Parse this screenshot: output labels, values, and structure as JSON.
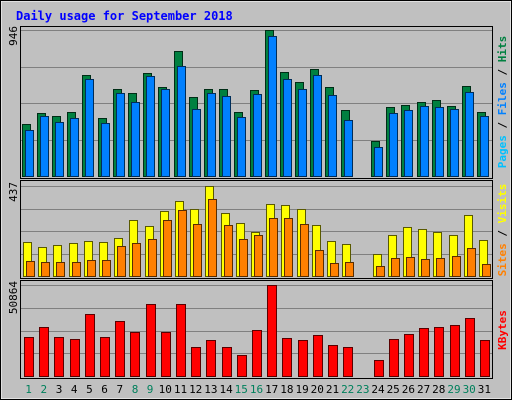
{
  "chart_data": {
    "type": "bar",
    "title": "Daily usage for September 2018",
    "categories": [
      "1",
      "2",
      "3",
      "4",
      "5",
      "6",
      "7",
      "8",
      "9",
      "10",
      "11",
      "12",
      "13",
      "14",
      "15",
      "16",
      "17",
      "18",
      "19",
      "20",
      "21",
      "22",
      "23",
      "24",
      "25",
      "26",
      "27",
      "28",
      "29",
      "30",
      "31"
    ],
    "weekend_days": [
      "1",
      "2",
      "8",
      "9",
      "15",
      "16",
      "22",
      "23",
      "29",
      "30"
    ],
    "panels": [
      {
        "name": "hits-files-pages",
        "max_label": "946",
        "ymax": 946,
        "series": [
          {
            "name": "Hits",
            "color": "#008040",
            "values": [
              336,
              408,
              386,
              414,
              654,
              376,
              566,
              538,
              670,
              574,
              810,
              510,
              566,
              566,
              414,
              558,
              946,
              672,
              612,
              696,
              576,
              428,
              0,
              226,
              446,
              462,
              478,
              492,
              456,
              584,
              412
            ]
          },
          {
            "name": "Files",
            "color": "#0080ff",
            "values": [
              296,
              388,
              348,
              376,
              626,
              346,
              536,
              478,
              646,
              566,
              714,
              434,
              536,
              516,
              380,
              532,
              906,
              628,
              566,
              654,
              528,
              362,
              0,
              188,
              410,
              430,
              452,
              450,
              434,
              546,
              386
            ]
          },
          {
            "name": "Pages",
            "color": "#00c0ff",
            "values": [
              0,
              0,
              0,
              0,
              0,
              0,
              0,
              0,
              0,
              0,
              0,
              0,
              0,
              0,
              0,
              0,
              0,
              0,
              0,
              0,
              0,
              0,
              0,
              0,
              0,
              0,
              0,
              0,
              0,
              0,
              0
            ]
          }
        ],
        "legend": [
          {
            "text": "Pages",
            "color": "#00c0ff"
          },
          {
            "text": " / ",
            "color": "#000000"
          },
          {
            "text": "Files",
            "color": "#0080ff"
          },
          {
            "text": " / ",
            "color": "#000000"
          },
          {
            "text": "Hits",
            "color": "#008040"
          }
        ]
      },
      {
        "name": "visits-sites",
        "max_label": "437",
        "ymax": 437,
        "series": [
          {
            "name": "Visits",
            "color": "#ffff00",
            "values": [
              164,
              140,
              150,
              160,
              172,
              166,
              186,
              270,
              242,
              316,
              366,
              326,
              437,
              304,
              256,
              216,
              350,
              346,
              324,
              248,
              170,
              156,
              0,
              108,
              200,
              238,
              226,
              214,
              198,
              296,
              176
            ]
          },
          {
            "name": "Sites",
            "color": "#ff8000",
            "values": [
              74,
              70,
              70,
              66,
              80,
              76,
              144,
              160,
              182,
              272,
              322,
              252,
              374,
              248,
              180,
              198,
              282,
              280,
              252,
              128,
              62,
              66,
              0,
              50,
              88,
              90,
              84,
              88,
              98,
              134,
              60
            ]
          }
        ],
        "legend": [
          {
            "text": "Sites",
            "color": "#ff8000"
          },
          {
            "text": " / ",
            "color": "#000000"
          },
          {
            "text": "Visits",
            "color": "#ffff00"
          }
        ]
      },
      {
        "name": "kbytes",
        "max_label": "50864",
        "ymax": 50864,
        "series": [
          {
            "name": "KBytes",
            "color": "#ff0000",
            "values": [
              21600,
              27400,
              21800,
              20800,
              34800,
              22000,
              31000,
              24800,
              40000,
              24600,
              40400,
              16400,
              20400,
              16000,
              12000,
              25800,
              50864,
              21200,
              20400,
              23000,
              17200,
              16400,
              0,
              9200,
              20800,
              23600,
              26800,
              27600,
              28600,
              32600,
              20000
            ]
          }
        ],
        "legend": [
          {
            "text": "KBytes",
            "color": "#ff0000"
          }
        ]
      }
    ]
  }
}
